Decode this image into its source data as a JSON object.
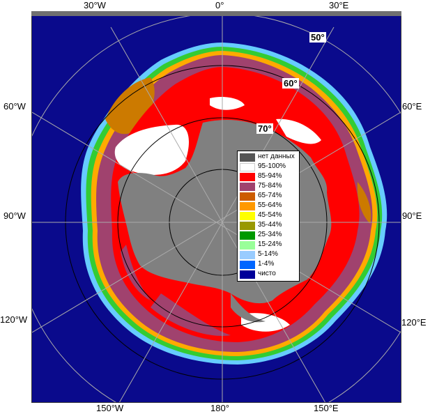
{
  "map": {
    "lon_labels": {
      "top_30w": "30°W",
      "top_0": "0°",
      "top_30e": "30°E",
      "left_60w": "60°W",
      "right_60e": "60°E",
      "left_90w": "90°W",
      "right_90e": "90°E",
      "left_120w": "120°W",
      "right_120e": "120°E",
      "bottom_150w": "150°W",
      "bottom_180": "180°",
      "bottom_150e": "150°E"
    },
    "lat_labels": {
      "lat50": "50°",
      "lat60": "60°",
      "lat70": "70°"
    },
    "colors": {
      "open_water": "#0a0a8c",
      "no_data": "#808080"
    }
  },
  "legend": {
    "items": [
      {
        "label": "нет данных",
        "color": "#555555"
      },
      {
        "label": "95-100%",
        "color": "#ffffff"
      },
      {
        "label": "85-94%",
        "color": "#ff0000"
      },
      {
        "label": "75-84%",
        "color": "#a0426e"
      },
      {
        "label": "65-74%",
        "color": "#cc5c00"
      },
      {
        "label": "55-64%",
        "color": "#ff9900"
      },
      {
        "label": "45-54%",
        "color": "#ffff00"
      },
      {
        "label": "35-44%",
        "color": "#999900"
      },
      {
        "label": "25-34%",
        "color": "#009900"
      },
      {
        "label": "15-24%",
        "color": "#99ff99"
      },
      {
        "label": "5-14%",
        "color": "#99ccff"
      },
      {
        "label": "1-4%",
        "color": "#0066ff"
      },
      {
        "label": "чисто",
        "color": "#000099"
      }
    ]
  }
}
